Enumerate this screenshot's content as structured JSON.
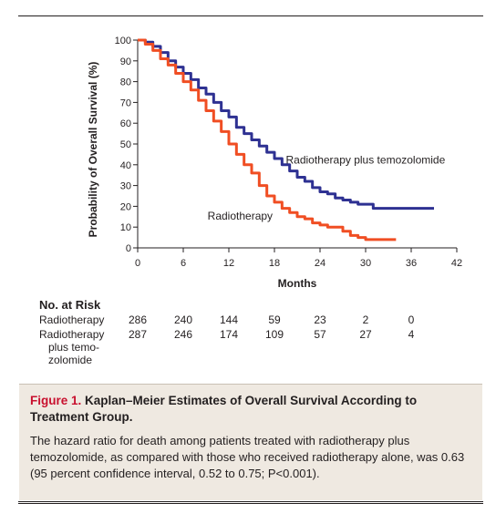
{
  "chart_data": {
    "type": "line",
    "title": "",
    "xlabel": "Months",
    "ylabel": "Probability of Overall Survival (%)",
    "xlim": [
      0,
      42
    ],
    "ylim": [
      0,
      100
    ],
    "x_ticks": [
      "0",
      "6",
      "12",
      "18",
      "24",
      "30",
      "36",
      "42"
    ],
    "y_ticks": [
      "0",
      "10",
      "20",
      "30",
      "40",
      "50",
      "60",
      "70",
      "80",
      "90",
      "100"
    ],
    "grid": false,
    "series": [
      {
        "name": "Radiotherapy plus temozolomide",
        "color": "#2e3192",
        "x": [
          0,
          1,
          2,
          3,
          4,
          5,
          6,
          7,
          8,
          9,
          10,
          11,
          12,
          13,
          14,
          15,
          16,
          17,
          18,
          19,
          20,
          21,
          22,
          23,
          24,
          25,
          26,
          27,
          28,
          29,
          30,
          31,
          32,
          33,
          34,
          35,
          36,
          37,
          38,
          39
        ],
        "y": [
          100,
          99,
          97,
          94,
          90,
          87,
          84,
          81,
          77,
          74,
          70,
          66,
          63,
          58,
          55,
          52,
          49,
          46,
          43,
          40,
          37,
          34,
          32,
          29,
          27,
          26,
          24,
          23,
          22,
          21,
          21,
          19,
          19,
          19,
          19,
          19,
          19,
          19,
          19,
          19
        ]
      },
      {
        "name": "Radiotherapy",
        "color": "#f04e23",
        "x": [
          0,
          1,
          2,
          3,
          4,
          5,
          6,
          7,
          8,
          9,
          10,
          11,
          12,
          13,
          14,
          15,
          16,
          17,
          18,
          19,
          20,
          21,
          22,
          23,
          24,
          25,
          26,
          27,
          28,
          29,
          30,
          31,
          32,
          33,
          34
        ],
        "y": [
          100,
          98,
          95,
          91,
          88,
          84,
          80,
          76,
          71,
          66,
          61,
          56,
          50,
          45,
          40,
          36,
          30,
          25,
          22,
          19,
          17,
          15,
          14,
          12,
          11,
          10,
          10,
          8,
          6,
          5,
          4,
          4,
          4,
          4,
          4
        ]
      }
    ],
    "annotations": [
      {
        "text": "Radiotherapy plus temozolomide",
        "x": 19.5,
        "y": 40.5
      },
      {
        "text": "Radiotherapy",
        "x": 9.2,
        "y": 13.5
      }
    ]
  },
  "risk_table": {
    "title": "No. at Risk",
    "rows": [
      {
        "label_lines": [
          "Radiotherapy"
        ],
        "values": [
          "286",
          "240",
          "144",
          "59",
          "23",
          "2",
          "0"
        ]
      },
      {
        "label_lines": [
          "Radiotherapy",
          "plus temo-",
          "zolomide"
        ],
        "values": [
          "287",
          "246",
          "174",
          "109",
          "57",
          "27",
          "4"
        ]
      }
    ]
  },
  "caption": {
    "figure_label": "Figure 1.",
    "title": "Kaplan–Meier Estimates of Overall Survival According to Treatment Group.",
    "text": "The hazard ratio for death among patients treated with radiotherapy plus temozolomide, as compared with those who received radiotherapy alone, was 0.63 (95 percent confidence interval, 0.52 to 0.75; P<0.001)."
  }
}
